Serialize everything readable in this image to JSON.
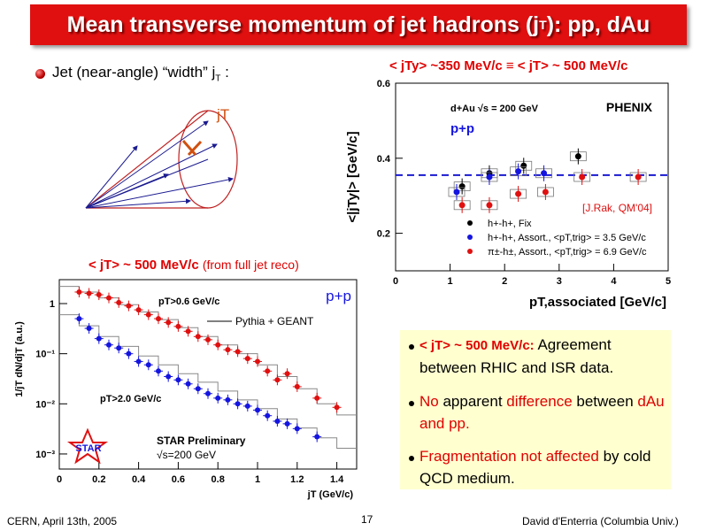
{
  "slide": {
    "title_pre": "Mean transverse momentum of jet hadrons (j",
    "title_sub": "T",
    "title_post": "): pp, dAu",
    "bullet_pre": "Jet (near-angle) “width” j",
    "bullet_sub": "T",
    "bullet_post": " :",
    "cone_label": "jT",
    "label_top_right": "< jTy> ~350 MeV/c ≡ < jT> ~ 500 MeV/c",
    "label_left": "< jT> ~ 500 MeV/c",
    "label_left_suffix": "(from full jet reco)",
    "notes": [
      {
        "lead": "< jT> ~ 500 MeV/c:",
        "rest": " Agreement between RHIC and ISR data."
      },
      {
        "parts": [
          {
            "t": "No",
            "c": "red"
          },
          {
            "t": " apparent ",
            "c": "black"
          },
          {
            "t": "difference",
            "c": "red"
          },
          {
            "t": " between ",
            "c": "black"
          },
          {
            "t": "dAu and pp.",
            "c": "red"
          }
        ]
      },
      {
        "parts": [
          {
            "t": "Fragmentation not affected",
            "c": "red"
          },
          {
            "t": " by cold QCD medium.",
            "c": "black"
          }
        ]
      }
    ],
    "footer_left": "CERN, April 13th, 2005",
    "footer_center": "17",
    "footer_right": "David d'Enterria (Columbia Univ.)"
  },
  "chart_data": [
    {
      "type": "scatter",
      "ylabel": "<|jTy|>   [GeV/c]",
      "xlabel": "pT,associated   [GeV/c]",
      "xlim": [
        0,
        5
      ],
      "ylim": [
        0.1,
        0.6
      ],
      "xticks": [
        0,
        1,
        2,
        3,
        4,
        5
      ],
      "yticks": [
        0.2,
        0.4,
        0.6
      ],
      "system_label": "d+Au √s = 200 GeV",
      "collision_label": "p+p",
      "logo": "PHENIX",
      "citation": "[J.Rak, QM'04]",
      "reference_line": 0.355,
      "colors": {
        "black": "#000000",
        "blue": "#1515e0",
        "red": "#e01010",
        "dash": "#1a1ad0"
      },
      "series": [
        {
          "name": "h+-h+, Fix",
          "color": "black",
          "x": [
            1.22,
            1.72,
            2.35,
            3.35
          ],
          "y": [
            0.325,
            0.36,
            0.38,
            0.405
          ]
        },
        {
          "name": "h+-h+, Assort., <pT,trig> = 3.5 GeV/c",
          "color": "blue",
          "x": [
            1.12,
            1.72,
            2.25,
            2.72
          ],
          "y": [
            0.31,
            0.35,
            0.365,
            0.36
          ]
        },
        {
          "name": "π±-h±, Assort., <pT,trig> = 6.9 GeV/c",
          "color": "red",
          "x": [
            1.22,
            1.72,
            2.25,
            2.75,
            3.42,
            4.45
          ],
          "y": [
            0.275,
            0.275,
            0.305,
            0.31,
            0.35,
            0.35
          ]
        }
      ]
    },
    {
      "type": "scatter",
      "ylabel": "1/jT dN/djT (a.u.)",
      "xlabel": "jT (GeV/c)",
      "yscale": "log",
      "xlim": [
        0,
        1.5
      ],
      "ylim": [
        0.0005,
        3
      ],
      "xticks": [
        0,
        0.2,
        0.4,
        0.6,
        0.8,
        1,
        1.2,
        1.4
      ],
      "yticks": [
        "10⁻³",
        "10⁻²",
        "10⁻¹",
        "1"
      ],
      "collision_label": "p+p",
      "legend_line": "Pythia + GEANT",
      "preliminary": "STAR Preliminary",
      "energy": "√s=200 GeV",
      "logo": "STAR",
      "series": [
        {
          "name": "pT>0.6 GeV/c",
          "color": "red",
          "x": [
            0.1,
            0.15,
            0.2,
            0.25,
            0.3,
            0.35,
            0.4,
            0.45,
            0.5,
            0.55,
            0.6,
            0.65,
            0.7,
            0.75,
            0.8,
            0.85,
            0.9,
            0.95,
            1.0,
            1.05,
            1.1,
            1.15,
            1.2,
            1.3,
            1.4
          ],
          "y": [
            1.7,
            1.6,
            1.5,
            1.3,
            1.05,
            0.9,
            0.75,
            0.6,
            0.5,
            0.42,
            0.35,
            0.28,
            0.22,
            0.19,
            0.15,
            0.12,
            0.11,
            0.08,
            0.07,
            0.045,
            0.03,
            0.04,
            0.022,
            0.013,
            0.0085
          ]
        },
        {
          "name": "pT>2.0 GeV/c",
          "color": "blue",
          "x": [
            0.1,
            0.15,
            0.2,
            0.25,
            0.3,
            0.35,
            0.4,
            0.45,
            0.5,
            0.55,
            0.6,
            0.65,
            0.7,
            0.75,
            0.8,
            0.85,
            0.9,
            0.95,
            1.0,
            1.05,
            1.1,
            1.15,
            1.2,
            1.3
          ],
          "y": [
            0.5,
            0.32,
            0.2,
            0.15,
            0.13,
            0.1,
            0.07,
            0.06,
            0.045,
            0.035,
            0.03,
            0.025,
            0.02,
            0.016,
            0.013,
            0.012,
            0.01,
            0.009,
            0.0075,
            0.0058,
            0.0045,
            0.004,
            0.0032,
            0.0022
          ]
        }
      ],
      "pythia_step_top": [
        [
          0.05,
          2.2
        ],
        [
          0.15,
          1.7
        ],
        [
          0.25,
          1.3
        ],
        [
          0.35,
          0.95
        ],
        [
          0.45,
          0.68
        ],
        [
          0.55,
          0.48
        ],
        [
          0.65,
          0.33
        ],
        [
          0.75,
          0.22
        ],
        [
          0.85,
          0.15
        ],
        [
          0.95,
          0.1
        ],
        [
          1.05,
          0.06
        ],
        [
          1.15,
          0.035
        ],
        [
          1.25,
          0.02
        ],
        [
          1.35,
          0.01
        ],
        [
          1.45,
          0.006
        ]
      ],
      "pythia_step_bot": [
        [
          0.05,
          0.6
        ],
        [
          0.15,
          0.36
        ],
        [
          0.25,
          0.22
        ],
        [
          0.35,
          0.14
        ],
        [
          0.45,
          0.09
        ],
        [
          0.55,
          0.06
        ],
        [
          0.65,
          0.04
        ],
        [
          0.75,
          0.027
        ],
        [
          0.85,
          0.018
        ],
        [
          0.95,
          0.012
        ],
        [
          1.05,
          0.008
        ],
        [
          1.15,
          0.005
        ],
        [
          1.25,
          0.0033
        ],
        [
          1.35,
          0.0021
        ],
        [
          1.45,
          0.0013
        ]
      ]
    }
  ]
}
